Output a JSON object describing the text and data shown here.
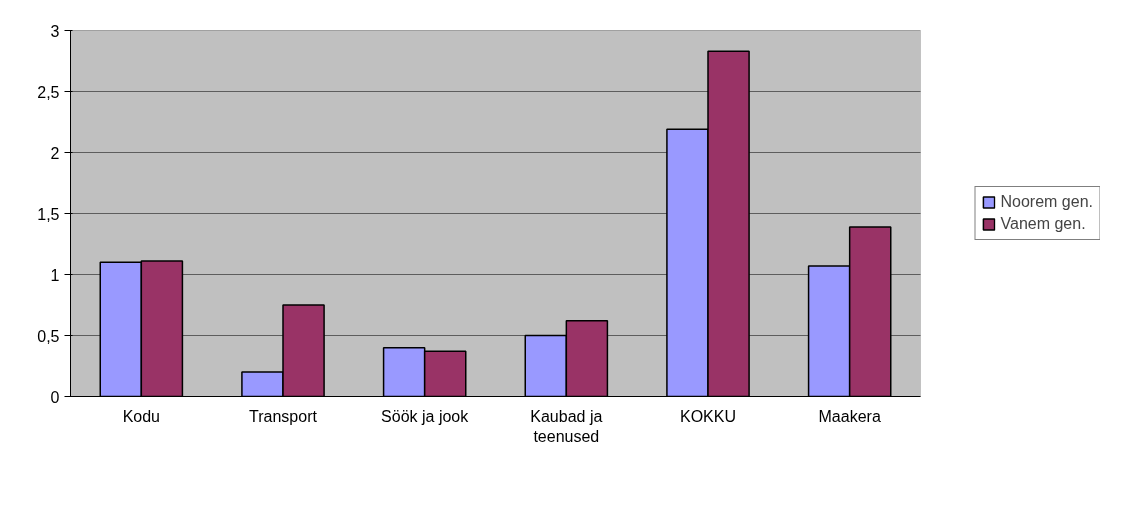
{
  "chart_data": {
    "type": "bar",
    "categories": [
      "Kodu",
      "Transport",
      "Söök ja jook",
      "Kaubad ja teenused",
      "KOKKU",
      "Maakera"
    ],
    "series": [
      {
        "name": "Noorem gen.",
        "color": "#9999ff",
        "values": [
          1.1,
          0.2,
          0.4,
          0.5,
          2.19,
          1.07
        ]
      },
      {
        "name": "Vanem gen.",
        "color": "#993366",
        "values": [
          1.11,
          0.75,
          0.37,
          0.62,
          2.83,
          1.39
        ]
      }
    ],
    "ylim": [
      0,
      3
    ],
    "yticks": [
      0,
      {
        "value": 0.5,
        "label": "0,5"
      },
      1,
      {
        "value": 1.5,
        "label": "1,5"
      },
      2,
      {
        "value": 2.5,
        "label": "2,5"
      },
      3
    ],
    "grid": "y",
    "legend": "right"
  }
}
